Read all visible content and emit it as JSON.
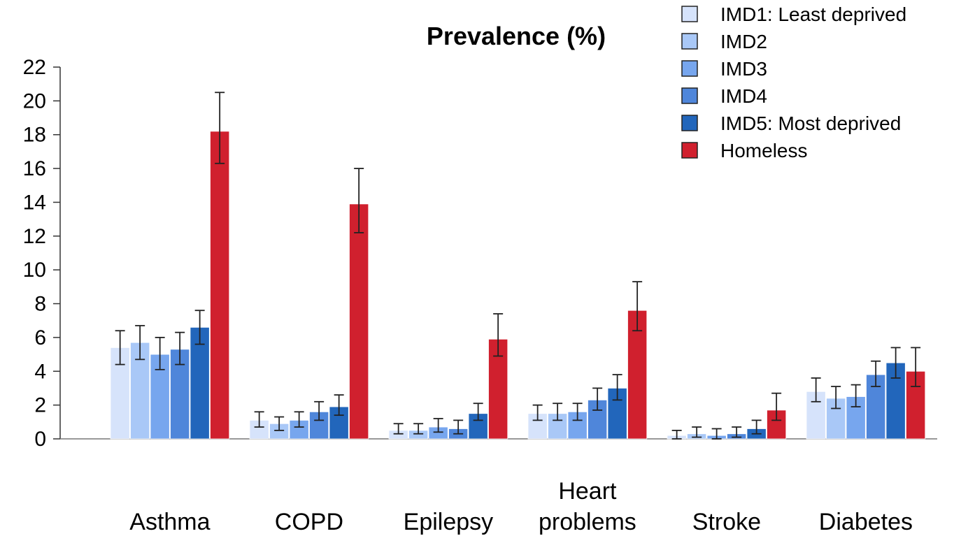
{
  "chart_data": {
    "type": "bar",
    "title": "Prevalence (%)",
    "xlabel": "",
    "ylabel": "",
    "ylim": [
      0,
      22
    ],
    "yticks": [
      0,
      2,
      4,
      6,
      8,
      10,
      12,
      14,
      16,
      18,
      20,
      22
    ],
    "categories": [
      [
        "Asthma"
      ],
      [
        "COPD"
      ],
      [
        "Epilepsy"
      ],
      [
        "Heart",
        "problems"
      ],
      [
        "Stroke"
      ],
      [
        "Diabetes"
      ]
    ],
    "legend_position": "top-right",
    "error_bars": true,
    "series": [
      {
        "name": "IMD1: Least deprived",
        "color": "#d6e3fb",
        "values": [
          5.4,
          1.1,
          0.5,
          1.5,
          0.2,
          2.8
        ],
        "err_low": [
          4.4,
          0.7,
          0.3,
          1.1,
          0.0,
          2.2
        ],
        "err_high": [
          6.4,
          1.6,
          0.9,
          2.0,
          0.5,
          3.6
        ]
      },
      {
        "name": "IMD2",
        "color": "#a9c8f7",
        "values": [
          5.7,
          0.9,
          0.5,
          1.5,
          0.3,
          2.4
        ],
        "err_low": [
          4.7,
          0.5,
          0.3,
          1.1,
          0.1,
          1.8
        ],
        "err_high": [
          6.7,
          1.3,
          0.9,
          2.1,
          0.7,
          3.1
        ]
      },
      {
        "name": "IMD3",
        "color": "#77a6ee",
        "values": [
          5.0,
          1.1,
          0.7,
          1.6,
          0.2,
          2.5
        ],
        "err_low": [
          4.1,
          0.7,
          0.4,
          1.1,
          0.0,
          1.9
        ],
        "err_high": [
          6.0,
          1.6,
          1.2,
          2.1,
          0.6,
          3.2
        ]
      },
      {
        "name": "IMD4",
        "color": "#4f86da",
        "values": [
          5.3,
          1.6,
          0.6,
          2.3,
          0.3,
          3.8
        ],
        "err_low": [
          4.4,
          1.1,
          0.3,
          1.7,
          0.1,
          3.1
        ],
        "err_high": [
          6.3,
          2.2,
          1.1,
          3.0,
          0.7,
          4.6
        ]
      },
      {
        "name": "IMD5: Most deprived",
        "color": "#2266bb",
        "values": [
          6.6,
          1.9,
          1.5,
          3.0,
          0.6,
          4.5
        ],
        "err_low": [
          5.6,
          1.4,
          1.1,
          2.3,
          0.3,
          3.6
        ],
        "err_high": [
          7.6,
          2.6,
          2.1,
          3.8,
          1.1,
          5.4
        ]
      },
      {
        "name": "Homeless",
        "color": "#d0202e",
        "values": [
          18.2,
          13.9,
          5.9,
          7.6,
          1.7,
          4.0
        ],
        "err_low": [
          16.3,
          12.2,
          4.9,
          6.4,
          1.1,
          3.1
        ],
        "err_high": [
          20.5,
          16.0,
          7.4,
          9.3,
          2.7,
          5.4
        ]
      }
    ]
  }
}
